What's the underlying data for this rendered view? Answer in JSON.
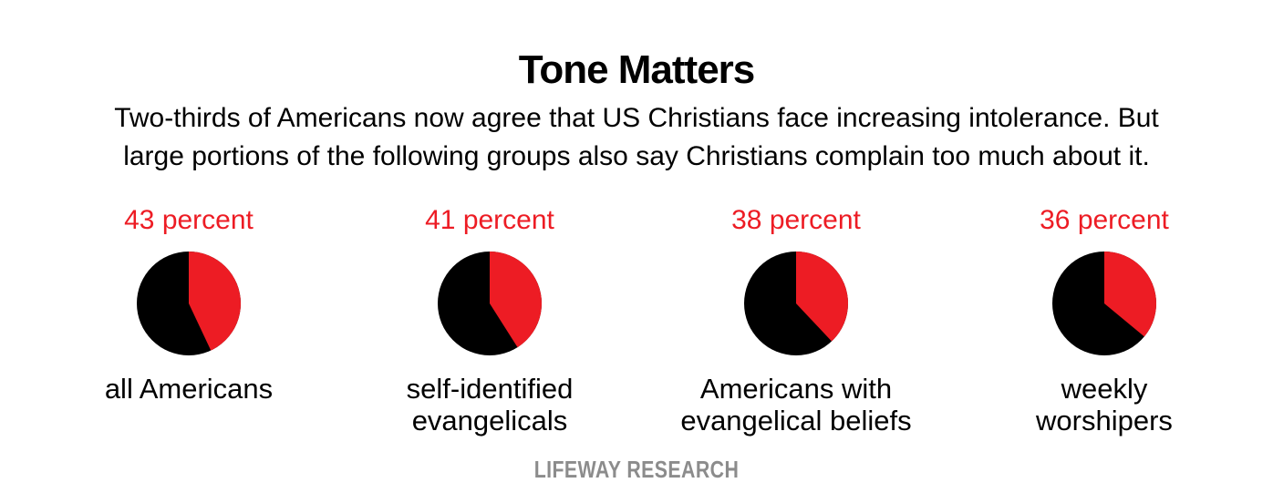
{
  "chart_data": {
    "type": "pie",
    "title": "Tone Matters",
    "subtitle": [
      "Two-thirds of Americans now agree that US Christians face increasing intolerance. But",
      "large portions of the following groups also say Christians complain too much about it."
    ],
    "pies": [
      {
        "value_label": "43 percent",
        "value": 43,
        "label": [
          "all Americans"
        ]
      },
      {
        "value_label": "41 percent",
        "value": 41,
        "label": [
          "self-identified",
          "evangelicals"
        ]
      },
      {
        "value_label": "38 percent",
        "value": 38,
        "label": [
          "Americans with",
          "evangelical beliefs"
        ]
      },
      {
        "value_label": "36 percent",
        "value": 36,
        "label": [
          "weekly",
          "worshipers"
        ]
      }
    ],
    "colors": {
      "highlight": "#ed1c24",
      "rest": "#000000"
    }
  },
  "footer": "LIFEWAY RESEARCH"
}
